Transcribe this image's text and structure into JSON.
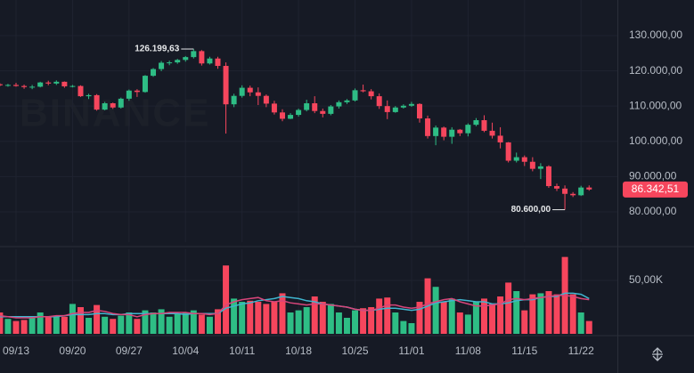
{
  "chart_data": [
    {
      "type": "candlestick",
      "watermark": "BINANCE",
      "up_color": "#2ebd85",
      "down_color": "#f6465d",
      "categories": [
        null,
        null,
        "09/13",
        null,
        null,
        null,
        null,
        null,
        null,
        "09/20",
        null,
        null,
        null,
        null,
        null,
        null,
        "09/27",
        null,
        null,
        null,
        null,
        null,
        null,
        "10/04",
        null,
        null,
        null,
        null,
        null,
        null,
        "10/11",
        null,
        null,
        null,
        null,
        null,
        null,
        "10/18",
        null,
        null,
        null,
        null,
        null,
        null,
        "10/25",
        null,
        null,
        null,
        null,
        null,
        null,
        "11/01",
        null,
        null,
        null,
        null,
        null,
        null,
        "11/08",
        null,
        null,
        null,
        null,
        null,
        null,
        "11/15",
        null,
        null,
        null,
        null,
        null,
        null,
        "11/22",
        null
      ],
      "open": [
        116200,
        115900,
        116000,
        115700,
        115400,
        115500,
        116700,
        116400,
        116900,
        115600,
        115700,
        112800,
        113100,
        109000,
        110800,
        109600,
        112100,
        114400,
        114000,
        118600,
        120500,
        122300,
        122400,
        123100,
        123900,
        125600,
        122100,
        123500,
        121400,
        110500,
        112900,
        115200,
        113900,
        112900,
        110700,
        108200,
        106400,
        107500,
        108900,
        110800,
        108600,
        107800,
        109900,
        111100,
        111600,
        114500,
        114200,
        112800,
        110000,
        108300,
        109600,
        110100,
        110600,
        106500,
        101500,
        103900,
        101300,
        103300,
        102300,
        104700,
        106000,
        103000,
        101600,
        99700,
        94500,
        95500,
        94200,
        92200,
        92900,
        87300,
        86600,
        85100,
        84700,
        86900
      ],
      "high": [
        116500,
        116300,
        116600,
        116100,
        116000,
        116900,
        117200,
        117300,
        117000,
        116000,
        115900,
        113500,
        113400,
        111200,
        111000,
        112400,
        114700,
        114800,
        118800,
        120800,
        122800,
        122900,
        123400,
        124200,
        126199.63,
        125900,
        124000,
        124000,
        122400,
        113500,
        115900,
        115800,
        115300,
        113300,
        111500,
        109100,
        108000,
        109300,
        111800,
        112800,
        109300,
        110300,
        111600,
        112000,
        115000,
        116100,
        114800,
        113600,
        111600,
        110000,
        110500,
        111200,
        110800,
        107300,
        104500,
        104200,
        104000,
        103500,
        105100,
        106600,
        107400,
        105300,
        104000,
        99800,
        96800,
        96000,
        95500,
        93800,
        93200,
        88000,
        87500,
        85600,
        87400,
        87500
      ],
      "low": [
        115600,
        115500,
        115500,
        114900,
        114800,
        115300,
        115900,
        116000,
        115200,
        115300,
        112600,
        112000,
        108700,
        108800,
        109200,
        109300,
        111500,
        112600,
        113800,
        118300,
        119900,
        121600,
        122000,
        122600,
        123500,
        121500,
        121800,
        120600,
        102200,
        109700,
        112400,
        112800,
        110300,
        109700,
        107600,
        105700,
        106300,
        107000,
        108500,
        108000,
        106800,
        107400,
        109300,
        110600,
        111300,
        113900,
        111900,
        109200,
        106300,
        108100,
        109300,
        109800,
        105300,
        100800,
        98900,
        100300,
        99300,
        101500,
        101400,
        104300,
        102600,
        100800,
        98000,
        94000,
        94000,
        93000,
        91500,
        89300,
        86800,
        85900,
        80600,
        84200,
        84500,
        86000
      ],
      "close": [
        115900,
        116000,
        115700,
        115400,
        115500,
        116700,
        116400,
        116900,
        115600,
        115700,
        112800,
        113100,
        109000,
        110800,
        109600,
        112100,
        114400,
        114000,
        118600,
        120500,
        122300,
        122400,
        123100,
        123900,
        125600,
        122100,
        123500,
        121400,
        110500,
        112900,
        115200,
        113900,
        112900,
        110700,
        108200,
        106400,
        107500,
        108900,
        110800,
        108600,
        107800,
        109900,
        111100,
        111600,
        114500,
        114200,
        112800,
        110000,
        108300,
        109600,
        110100,
        110600,
        106500,
        101500,
        103900,
        101300,
        103300,
        102300,
        104700,
        106000,
        103000,
        101600,
        99700,
        94500,
        95500,
        94200,
        92200,
        92900,
        87300,
        86600,
        85100,
        84700,
        86900,
        86342.51
      ],
      "annotations": [
        {
          "label": "126.199,63",
          "value": 126199.63
        },
        {
          "label": "80.600,00",
          "value": 80600
        },
        {
          "label": "86.342,51",
          "value": 86342.51
        }
      ],
      "ylim": [
        71400,
        140100
      ],
      "yticks": [
        {
          "value": 80000,
          "label": "80.000,00"
        },
        {
          "value": 90000,
          "label": "90.000,00"
        },
        {
          "value": 100000,
          "label": "100.000,00"
        },
        {
          "value": 110000,
          "label": "110.000,00"
        },
        {
          "value": 120000,
          "label": "120.000,00"
        },
        {
          "value": 130000,
          "label": "130.000,00"
        }
      ],
      "grid": true
    },
    {
      "type": "bar",
      "values": [
        20000,
        14000,
        12000,
        13000,
        15000,
        20000,
        16000,
        17000,
        16000,
        28000,
        25000,
        15000,
        27000,
        16000,
        14000,
        17000,
        20000,
        14000,
        22000,
        20000,
        23000,
        16000,
        19000,
        20000,
        22000,
        18000,
        16000,
        23000,
        64000,
        33000,
        30000,
        31000,
        30000,
        28000,
        30000,
        38000,
        20000,
        22000,
        25000,
        35000,
        30000,
        28000,
        20000,
        15000,
        22000,
        24000,
        25000,
        33000,
        34000,
        20000,
        12000,
        10000,
        30000,
        52000,
        44000,
        30000,
        33000,
        20000,
        18000,
        30000,
        33000,
        28000,
        35000,
        48000,
        40000,
        22000,
        37000,
        38000,
        40000,
        37000,
        72000,
        37000,
        20000,
        12000
      ],
      "series": [
        {
          "color": "#3fb5cf",
          "values": [
            16000,
            16000,
            16000,
            16000,
            16000,
            16000,
            16000,
            16000,
            17000,
            18000,
            18000,
            18000,
            19000,
            19000,
            18000,
            18000,
            19000,
            19000,
            19000,
            19000,
            19000,
            19000,
            19000,
            18000,
            19000,
            19000,
            19000,
            19000,
            24000,
            26000,
            28000,
            29000,
            31000,
            32000,
            33000,
            35000,
            34000,
            33000,
            31000,
            30000,
            28000,
            27000,
            26000,
            25000,
            23000,
            22000,
            22000,
            23000,
            24000,
            24000,
            23000,
            22000,
            23000,
            26000,
            29000,
            30000,
            31000,
            32000,
            31000,
            30000,
            30000,
            28000,
            28000,
            29000,
            31000,
            32000,
            32000,
            34000,
            35000,
            35000,
            38000,
            38000,
            37000,
            33000
          ]
        },
        {
          "color": "#d8457a",
          "values": [
            17000,
            16000,
            15000,
            15000,
            15000,
            16000,
            16000,
            17000,
            17000,
            19000,
            20000,
            20000,
            22000,
            21000,
            19000,
            18000,
            18000,
            16000,
            18000,
            19000,
            19000,
            20000,
            20000,
            20000,
            19000,
            19000,
            18000,
            19000,
            27000,
            30000,
            32000,
            33000,
            34000,
            31000,
            30000,
            31000,
            29000,
            28000,
            27000,
            28000,
            28000,
            27000,
            26000,
            25000,
            23000,
            22000,
            22000,
            24000,
            27000,
            27000,
            25000,
            24000,
            25000,
            28000,
            30000,
            32000,
            33000,
            30000,
            28000,
            26000,
            26000,
            27000,
            28000,
            32000,
            33000,
            32000,
            33000,
            34000,
            35000,
            36000,
            36000,
            35000,
            33000,
            32000
          ]
        }
      ],
      "ylim": [
        0,
        79200
      ],
      "yticks": [
        {
          "value": 50000,
          "label": "50,00K"
        }
      ],
      "grid": true
    }
  ]
}
